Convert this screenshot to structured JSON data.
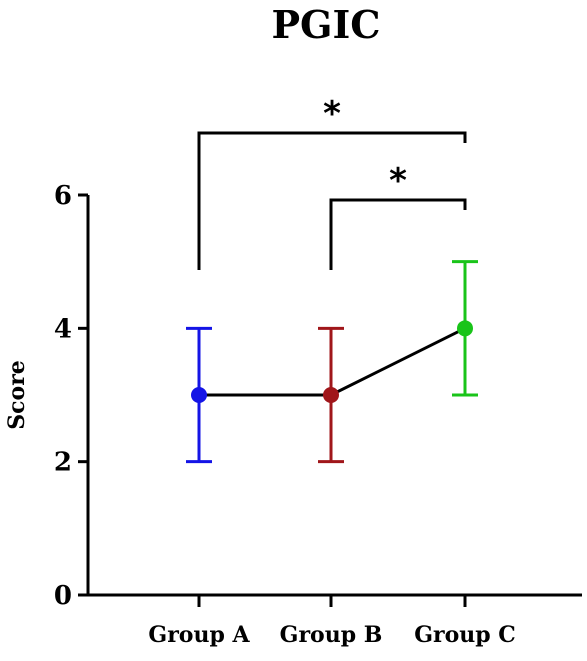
{
  "chart_data": {
    "type": "scatter",
    "title": "PGIC",
    "xlabel": "",
    "ylabel": "Score",
    "ylim": [
      0,
      6
    ],
    "yticks": [
      0,
      2,
      4,
      6
    ],
    "categories": [
      "Group A",
      "Group B",
      "Group C"
    ],
    "points": [
      {
        "category": "Group A",
        "value": 3,
        "error_low": 2,
        "error_high": 4,
        "color": "#1414e6"
      },
      {
        "category": "Group B",
        "value": 3,
        "error_low": 2,
        "error_high": 4,
        "color": "#a0161a"
      },
      {
        "category": "Group C",
        "value": 4,
        "error_low": 3,
        "error_high": 5,
        "color": "#19c419"
      }
    ],
    "connecting_line": true,
    "significance": [
      {
        "from": "Group A",
        "to": "Group C",
        "label": "*"
      },
      {
        "from": "Group B",
        "to": "Group C",
        "label": "*"
      }
    ],
    "grid": false,
    "axis_color": "#000000"
  }
}
